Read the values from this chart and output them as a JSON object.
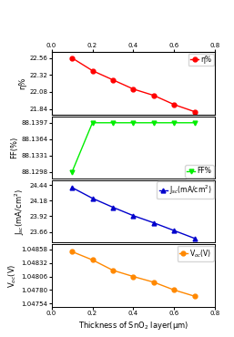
{
  "x": [
    0.1,
    0.2,
    0.3,
    0.4,
    0.5,
    0.6,
    0.7
  ],
  "eta": [
    22.56,
    22.38,
    22.25,
    22.12,
    22.03,
    21.9,
    21.8
  ],
  "FF": [
    88.1298,
    88.1397,
    88.1397,
    88.1397,
    88.1397,
    88.1397,
    88.1397
  ],
  "Jsc": [
    24.4,
    24.22,
    24.07,
    23.93,
    23.81,
    23.68,
    23.55
  ],
  "Voc": [
    1.04854,
    1.04838,
    1.04818,
    1.04806,
    1.04795,
    1.0478,
    1.04768
  ],
  "eta_color": "#ff0000",
  "FF_color": "#00ee00",
  "Jsc_color": "#0000cc",
  "Voc_color": "#ff8800",
  "xlabel": "Thickness of SnO$_2$ layer(μm)",
  "eta_ylabel": "η%",
  "FF_ylabel": "FF(%)",
  "Jsc_ylabel": "J$_{sc}$(mA/cm$^2$)",
  "Voc_ylabel": "V$_{oc}$(V)",
  "eta_label": "η%",
  "FF_label": "FF%",
  "Jsc_label": "J$_{sc}$(mA/cm$^2$)",
  "Voc_label": "V$_{oc}$(V)",
  "xlim": [
    0.0,
    0.8
  ],
  "eta_ylim": [
    21.76,
    22.64
  ],
  "FF_ylim": [
    88.1285,
    88.141
  ],
  "Jsc_ylim": [
    23.48,
    24.52
  ],
  "Voc_ylim": [
    1.04748,
    1.04868
  ],
  "eta_yticks": [
    21.84,
    22.08,
    22.32,
    22.56
  ],
  "FF_yticks": [
    88.1298,
    88.1331,
    88.1364,
    88.1397
  ],
  "Jsc_yticks": [
    23.66,
    23.92,
    24.18,
    24.44
  ],
  "Voc_yticks": [
    1.04754,
    1.0478,
    1.04806,
    1.04832,
    1.04858
  ],
  "xticks": [
    0.0,
    0.2,
    0.4,
    0.6,
    0.8
  ],
  "background_color": "#ffffff"
}
